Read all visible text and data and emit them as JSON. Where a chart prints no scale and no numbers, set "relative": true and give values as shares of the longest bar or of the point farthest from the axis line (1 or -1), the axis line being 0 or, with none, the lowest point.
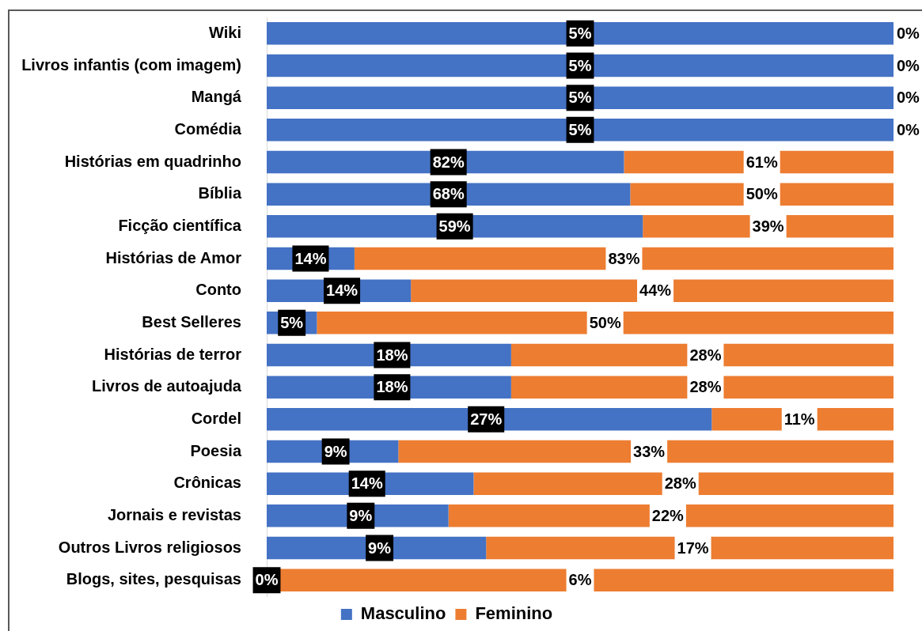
{
  "chart_data": {
    "type": "bar",
    "orientation": "horizontal",
    "stacked": true,
    "relative": true,
    "legend": "bottom",
    "categories": [
      "Wiki",
      "Livros infantis (com imagem)",
      "Mangá",
      "Comédia",
      "Histórias em quadrinho",
      "Bíblia",
      "Ficção científica",
      "Histórias de Amor",
      "Conto",
      "Best Selleres",
      "Histórias de terror",
      "Livros de autoajuda",
      "Cordel",
      "Poesia",
      "Crônicas",
      "Jornais e revistas",
      "Outros Livros religiosos",
      "Blogs, sites, pesquisas"
    ],
    "series": [
      {
        "name": "Masculino",
        "color": "#4472c4",
        "values": [
          1,
          1,
          1,
          1,
          0.57,
          0.58,
          0.6,
          0.14,
          0.23,
          0.08,
          0.39,
          0.39,
          0.71,
          0.21,
          0.33,
          0.29,
          0.35,
          0
        ]
      },
      {
        "name": "Feminino",
        "color": "#ed7d31",
        "values": [
          0,
          0,
          0,
          0,
          0.43,
          0.42,
          0.4,
          0.86,
          0.77,
          0.92,
          0.61,
          0.61,
          0.29,
          0.79,
          0.67,
          0.71,
          0.65,
          1
        ]
      }
    ],
    "annotations": [
      {
        "text": "5%",
        "x": 0.5,
        "y": "Wiki"
      },
      {
        "text": "0%",
        "x": 1,
        "y": "Wiki"
      },
      {
        "text": "5%",
        "x": 0.5,
        "y": "Livros infantis (com imagem)"
      },
      {
        "text": "0%",
        "x": 1,
        "y": "Livros infantis (com imagem)"
      },
      {
        "text": "5%",
        "x": 0.5,
        "y": "Mangá"
      },
      {
        "text": "0%",
        "x": 1,
        "y": "Mangá"
      },
      {
        "text": "5%",
        "x": 0.5,
        "y": "Comédia"
      },
      {
        "text": "0%",
        "x": 1,
        "y": "Comédia"
      },
      {
        "text": "82%",
        "x": 0.29,
        "y": "Histórias em quadrinho"
      },
      {
        "text": "61%",
        "x": 0.79,
        "y": "Histórias em quadrinho"
      },
      {
        "text": "68%",
        "x": 0.29,
        "y": "Bíblia"
      },
      {
        "text": "50%",
        "x": 0.79,
        "y": "Bíblia"
      },
      {
        "text": "59%",
        "x": 0.3,
        "y": "Ficção científica"
      },
      {
        "text": "39%",
        "x": 0.8,
        "y": "Ficção científica"
      },
      {
        "text": "14%",
        "x": 0.07,
        "y": "Histórias de Amor"
      },
      {
        "text": "83%",
        "x": 0.57,
        "y": "Histórias de Amor"
      },
      {
        "text": "14%",
        "x": 0.12,
        "y": "Conto"
      },
      {
        "text": "44%",
        "x": 0.62,
        "y": "Conto"
      },
      {
        "text": "5%",
        "x": 0.04,
        "y": "Best Selleres"
      },
      {
        "text": "50%",
        "x": 0.54,
        "y": "Best Selleres"
      },
      {
        "text": "18%",
        "x": 0.2,
        "y": "Histórias de terror"
      },
      {
        "text": "28%",
        "x": 0.7,
        "y": "Histórias de terror"
      },
      {
        "text": "18%",
        "x": 0.2,
        "y": "Livros de autoajuda"
      },
      {
        "text": "28%",
        "x": 0.7,
        "y": "Livros de autoajuda"
      },
      {
        "text": "27%",
        "x": 0.35,
        "y": "Cordel"
      },
      {
        "text": "11%",
        "x": 0.85,
        "y": "Cordel"
      },
      {
        "text": "9%",
        "x": 0.11,
        "y": "Poesia"
      },
      {
        "text": "33%",
        "x": 0.61,
        "y": "Poesia"
      },
      {
        "text": "14%",
        "x": 0.16,
        "y": "Crônicas"
      },
      {
        "text": "28%",
        "x": 0.66,
        "y": "Crônicas"
      },
      {
        "text": "9%",
        "x": 0.15,
        "y": "Jornais e revistas"
      },
      {
        "text": "22%",
        "x": 0.64,
        "y": "Jornais e revistas"
      },
      {
        "text": "9%",
        "x": 0.18,
        "y": "Outros Livros religiosos"
      },
      {
        "text": "17%",
        "x": 0.68,
        "y": "Outros Livros religiosos"
      },
      {
        "text": "0%",
        "x": 0,
        "y": "Blogs, sites, pesquisas"
      },
      {
        "text": "6%",
        "x": 0.5,
        "y": "Blogs, sites, pesquisas"
      }
    ]
  }
}
